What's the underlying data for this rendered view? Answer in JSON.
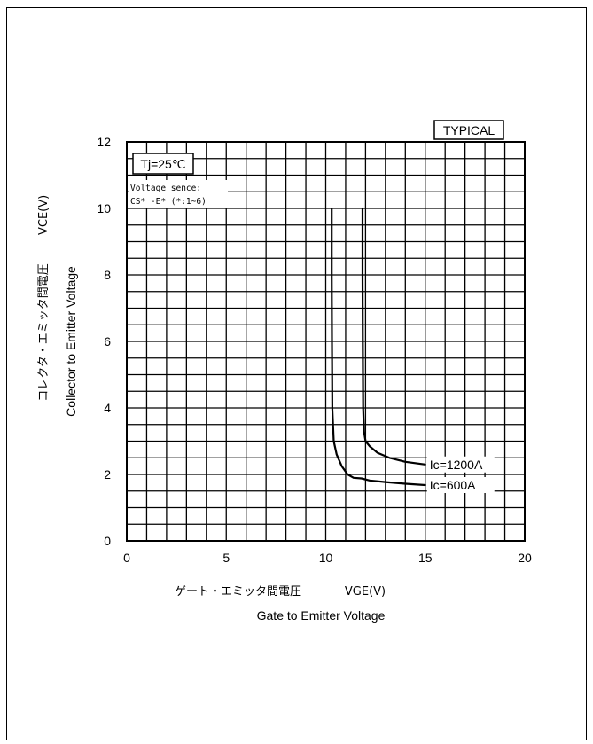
{
  "chart_data": {
    "type": "line",
    "title": "",
    "xlabel_jp": "ゲート・エミッタ間電圧",
    "xlabel_symbol": "VGE(V)",
    "xlabel": "Gate to Emitter Voltage",
    "ylabel_jp": "コレクタ・エミッタ間電圧",
    "ylabel_symbol": "VCE(V)",
    "ylabel": "Collector to Emitter Voltage",
    "xlim": [
      0,
      20
    ],
    "ylim": [
      0,
      12
    ],
    "x_ticks": [
      "0",
      "5",
      "10",
      "15",
      "20"
    ],
    "y_ticks": [
      "0",
      "2",
      "4",
      "6",
      "8",
      "10",
      "12"
    ],
    "grid": true,
    "annotations": {
      "typical": "TYPICAL",
      "temperature": "Tj=25℃",
      "voltage_sense_line1": "Voltage sence:",
      "voltage_sense_line2": "CS* -E* (*:1~6)"
    },
    "series": [
      {
        "name": "Ic=1200A",
        "x": [
          11.85,
          11.85,
          11.86,
          11.88,
          11.92,
          12.0,
          12.2,
          12.6,
          13.2,
          14.0,
          15.0
        ],
        "y": [
          10.0,
          8.0,
          6.0,
          4.0,
          3.3,
          3.0,
          2.85,
          2.65,
          2.5,
          2.38,
          2.3
        ]
      },
      {
        "name": "Ic=600A",
        "x": [
          10.3,
          10.3,
          10.31,
          10.33,
          10.4,
          10.55,
          10.8,
          11.1,
          11.4,
          11.8,
          12.2,
          13.0,
          14.0,
          15.0
        ],
        "y": [
          10.0,
          8.0,
          6.0,
          4.0,
          3.0,
          2.6,
          2.25,
          2.0,
          1.9,
          1.88,
          1.82,
          1.77,
          1.72,
          1.68
        ]
      }
    ]
  }
}
